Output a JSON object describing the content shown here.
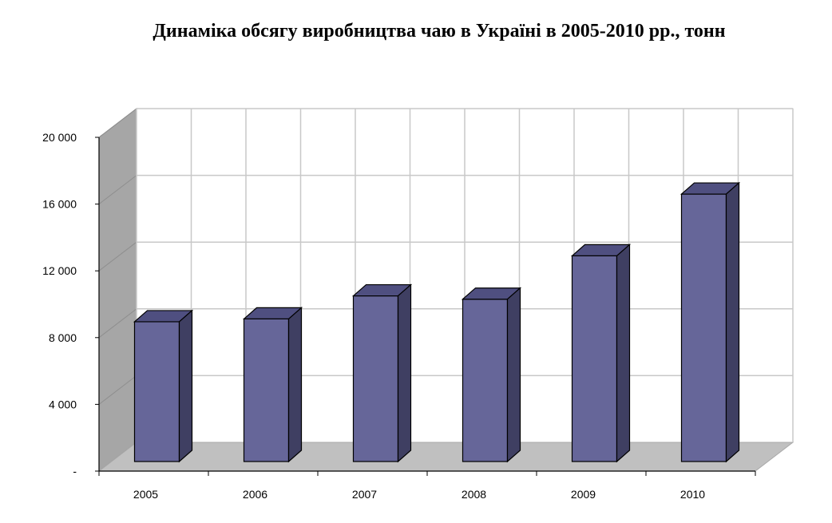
{
  "chart_data": {
    "type": "bar",
    "title": "Динаміка обсягу виробництва чаю в Україні в 2005-2010 рр., тонн",
    "categories": [
      "2005",
      "2006",
      "2007",
      "2008",
      "2009",
      "2010"
    ],
    "values": [
      8950,
      9120,
      10500,
      10300,
      12900,
      16600
    ],
    "ylim": [
      0,
      20000
    ],
    "y_ticks": [
      0,
      4000,
      8000,
      12000,
      16000,
      20000
    ],
    "y_tick_labels": [
      "-",
      "4 000",
      "8 000",
      "12 000",
      "16 000",
      "20 000"
    ],
    "xlabel": "",
    "ylabel": "",
    "grid": true,
    "style": "3d-column",
    "colors": {
      "bar_front": "#666699",
      "bar_top": "#4F4F80",
      "bar_side": "#3F3F62",
      "wall": "#FFFFFF",
      "side_wall": "#A6A6A6",
      "floor": "#C0C0C0",
      "grid": "#C8C8C8"
    }
  }
}
